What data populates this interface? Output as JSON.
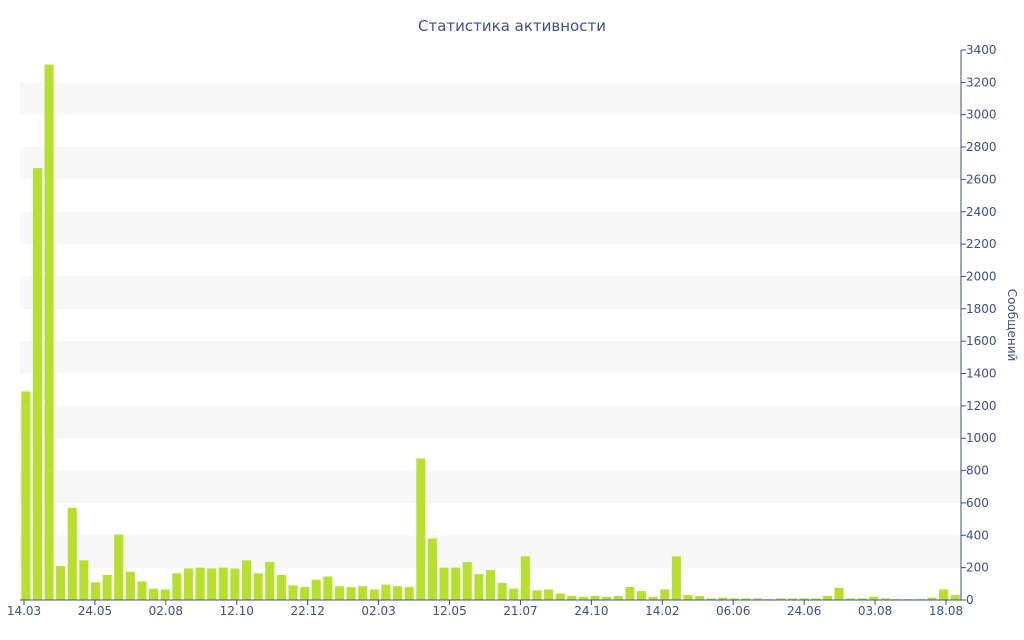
{
  "chart_data": {
    "type": "bar",
    "title": "Статистика активности",
    "ylabel": "Сообщений",
    "xlabel": "",
    "ylim": [
      0,
      3400
    ],
    "y_ticks": [
      0,
      200,
      400,
      600,
      800,
      1000,
      1200,
      1400,
      1600,
      1800,
      2000,
      2200,
      2400,
      2600,
      2800,
      3000,
      3200,
      3400
    ],
    "y_axis_side": "right",
    "x_tick_labels": [
      "14.03",
      "24.05",
      "02.08",
      "12.10",
      "22.12",
      "02.03",
      "12.05",
      "21.07",
      "24.10",
      "14.02",
      "06.06",
      "24.06",
      "03.08",
      "18.08"
    ],
    "bar_color": "#b6e02e",
    "band_color": "#f7f7f7",
    "text_color": "#3e4f84",
    "values": [
      1290,
      2670,
      3310,
      210,
      570,
      245,
      110,
      155,
      405,
      175,
      115,
      70,
      65,
      165,
      195,
      200,
      195,
      200,
      195,
      245,
      165,
      235,
      155,
      90,
      80,
      125,
      145,
      85,
      80,
      85,
      65,
      95,
      85,
      80,
      875,
      380,
      200,
      200,
      235,
      160,
      185,
      105,
      70,
      270,
      60,
      65,
      40,
      25,
      20,
      25,
      20,
      25,
      80,
      55,
      20,
      65,
      270,
      30,
      25,
      10,
      15,
      10,
      10,
      10,
      5,
      10,
      10,
      10,
      10,
      25,
      75,
      10,
      10,
      20,
      10,
      5,
      5,
      5,
      15,
      65,
      30
    ]
  }
}
